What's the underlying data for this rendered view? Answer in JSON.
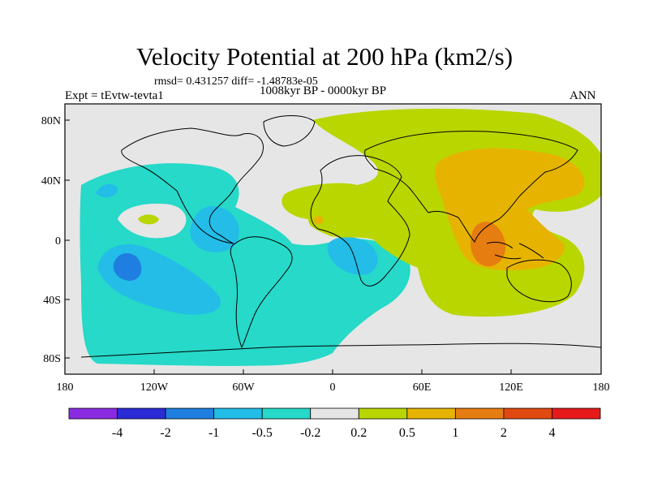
{
  "title": "Velocity Potential at 200 hPa (km2/s)",
  "stats": "rmsd= 0.431257 diff= -1.48783e-05",
  "expt": "Expt = tEvtw-tevta1",
  "period": "1008kyr BP - 0000kyr BP",
  "season": "ANN",
  "axes": {
    "x_ticks": [
      "180",
      "120W",
      "60W",
      "0",
      "60E",
      "120E",
      "180"
    ],
    "y_ticks": [
      "80N",
      "40N",
      "0",
      "40S",
      "80S"
    ]
  },
  "colorbar": {
    "colors": [
      "#8a2be2",
      "#2b2bd6",
      "#1f7fe0",
      "#23bde8",
      "#26d9c8",
      "#e6e6e6",
      "#b9d600",
      "#e6b400",
      "#e57d10",
      "#e04a10",
      "#e61a1a"
    ],
    "labels": [
      "-4",
      "-2",
      "-1",
      "-0.5",
      "-0.2",
      "0.2",
      "0.5",
      "1",
      "2",
      "4"
    ]
  }
}
